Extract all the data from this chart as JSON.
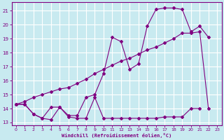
{
  "xlabel": "Windchill (Refroidissement éolien,°C)",
  "background_color": "#c8eaf0",
  "grid_color": "#ffffff",
  "line_color": "#800080",
  "xlim": [
    -0.5,
    23.5
  ],
  "ylim": [
    12.8,
    21.6
  ],
  "yticks": [
    13,
    14,
    15,
    16,
    17,
    18,
    19,
    20,
    21
  ],
  "xticks": [
    0,
    1,
    2,
    3,
    4,
    5,
    6,
    7,
    8,
    9,
    10,
    11,
    12,
    13,
    14,
    15,
    16,
    17,
    18,
    19,
    20,
    21,
    22,
    23
  ],
  "series1_x": [
    0,
    1,
    2,
    3,
    4,
    5,
    6,
    7,
    8,
    9,
    10,
    11,
    12,
    13,
    14,
    15,
    16,
    17,
    18,
    19,
    20,
    21
  ],
  "series1_y": [
    14.3,
    14.3,
    13.6,
    13.3,
    13.2,
    14.1,
    13.4,
    13.3,
    13.3,
    14.8,
    13.3,
    13.3,
    13.3,
    13.3,
    13.3,
    13.3,
    13.3,
    13.4,
    13.4,
    13.4,
    14.0,
    14.0
  ],
  "series2_x": [
    0,
    1,
    2,
    3,
    4,
    5,
    6,
    7,
    8,
    9,
    10,
    11,
    12,
    13,
    14,
    15,
    16,
    17,
    18,
    19,
    20,
    21,
    22
  ],
  "series2_y": [
    14.3,
    14.5,
    14.8,
    15.0,
    15.2,
    15.4,
    15.5,
    15.8,
    16.1,
    16.5,
    16.8,
    17.1,
    17.4,
    17.6,
    17.9,
    18.2,
    18.4,
    18.7,
    19.0,
    19.4,
    19.4,
    19.5,
    14.0
  ],
  "series3_x": [
    0,
    1,
    2,
    3,
    4,
    5,
    6,
    7,
    8,
    9,
    10,
    11,
    12,
    13,
    14,
    15,
    16,
    17,
    18,
    19,
    20,
    21,
    22
  ],
  "series3_y": [
    14.3,
    14.3,
    13.6,
    13.3,
    14.1,
    14.1,
    13.5,
    13.5,
    14.8,
    15.0,
    16.5,
    19.1,
    18.8,
    16.8,
    17.2,
    19.9,
    21.1,
    21.2,
    21.2,
    21.1,
    19.5,
    19.9,
    19.1
  ]
}
